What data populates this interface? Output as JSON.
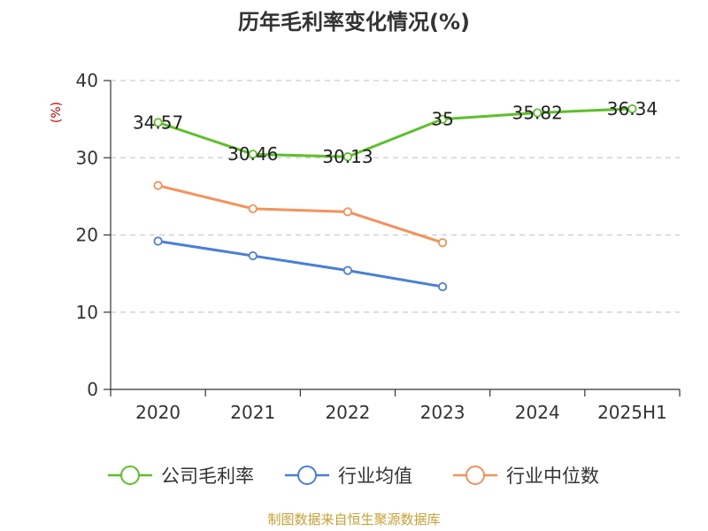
{
  "chart_data": {
    "type": "line",
    "title": "历年毛利率变化情况(%)",
    "ylabel": "(%)",
    "xlabel": "",
    "categories": [
      "2020",
      "2021",
      "2022",
      "2023",
      "2024",
      "2025H1"
    ],
    "ylim": [
      0,
      40
    ],
    "yticks": [
      0,
      10,
      20,
      30,
      40
    ],
    "grid": true,
    "legend_position": "bottom",
    "series": [
      {
        "name": "公司毛利率",
        "color": "#5cc02a",
        "values": [
          34.57,
          30.46,
          30.13,
          35,
          35.82,
          36.34
        ],
        "labels": [
          "34.57",
          "30.46",
          "30.13",
          "35",
          "35.82",
          "36.34"
        ]
      },
      {
        "name": "行业均值",
        "color": "#4a7fd6",
        "values": [
          19.2,
          17.3,
          15.4,
          13.3,
          null,
          null
        ]
      },
      {
        "name": "行业中位数",
        "color": "#f5915a",
        "values": [
          26.4,
          23.4,
          23.0,
          19.0,
          null,
          null
        ]
      }
    ],
    "source": "制图数据来自恒生聚源数据库"
  }
}
